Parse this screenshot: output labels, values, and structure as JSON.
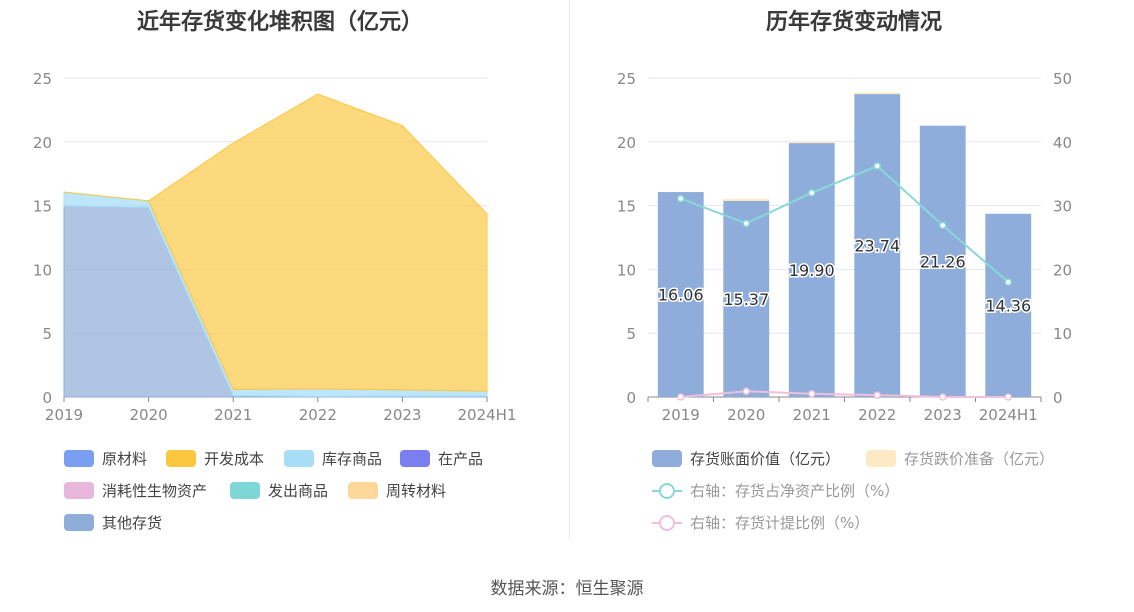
{
  "source": "数据来源：恒生聚源",
  "chart_data": [
    {
      "type": "area",
      "title": "近年存货变化堆积图（亿元）",
      "categories": [
        "2019",
        "2020",
        "2021",
        "2022",
        "2023",
        "2024H1"
      ],
      "ylim": [
        0,
        25
      ],
      "yticks": [
        0,
        5,
        10,
        15,
        20,
        25
      ],
      "grid": true,
      "legend_position": "bottom",
      "series": [
        {
          "name": "原材料",
          "color": "#7b9ff0",
          "values": [
            0,
            0,
            0,
            0,
            0,
            0
          ]
        },
        {
          "name": "开发成本",
          "color": "#fbc73f",
          "values": [
            0,
            0,
            19.3,
            23.1,
            20.7,
            13.9
          ]
        },
        {
          "name": "库存商品",
          "color": "#a8ddf8",
          "values": [
            1.1,
            0.5,
            0.5,
            0.6,
            0.5,
            0.4
          ]
        },
        {
          "name": "在产品",
          "color": "#7b7ef0",
          "values": [
            0,
            0,
            0,
            0,
            0,
            0
          ]
        },
        {
          "name": "消耗性生物资产",
          "color": "#e8b8dc",
          "values": [
            0,
            0,
            0,
            0,
            0,
            0
          ]
        },
        {
          "name": "发出商品",
          "color": "#7fd6d6",
          "values": [
            0,
            0,
            0,
            0,
            0,
            0
          ]
        },
        {
          "name": "周转材料",
          "color": "#fdd89a",
          "values": [
            0,
            0,
            0,
            0,
            0,
            0
          ]
        },
        {
          "name": "其他存货",
          "color": "#8fadd9",
          "values": [
            14.96,
            14.87,
            0.1,
            0.04,
            0.06,
            0.06
          ]
        }
      ]
    },
    {
      "type": "bar",
      "title": "历年存货变动情况",
      "categories": [
        "2019",
        "2020",
        "2021",
        "2022",
        "2023",
        "2024H1"
      ],
      "ylim": [
        0,
        25
      ],
      "yticks": [
        0,
        5,
        10,
        15,
        20,
        25
      ],
      "y2lim": [
        0,
        50
      ],
      "y2ticks": [
        0,
        10,
        20,
        30,
        40,
        50
      ],
      "grid": true,
      "legend_position": "bottom",
      "series": [
        {
          "name": "存货账面价值（亿元）",
          "kind": "bar",
          "color": "#8eadda",
          "values": [
            16.06,
            15.37,
            19.9,
            23.74,
            21.26,
            14.36
          ],
          "labels": [
            "16.06",
            "15.37",
            "19.90",
            "23.74",
            "21.26",
            "14.36"
          ]
        },
        {
          "name": "存货跌价准备（亿元）",
          "kind": "bar-stack",
          "color": "#fde9c3",
          "values": [
            0,
            0.15,
            0.12,
            0.12,
            0,
            0
          ]
        },
        {
          "name": "右轴：存货占净资产比例（%）",
          "kind": "line",
          "axis": "right",
          "color": "#88d8d8",
          "values": [
            31.1,
            27.2,
            32.0,
            36.2,
            26.9,
            18.0
          ]
        },
        {
          "name": "右轴：存货计提比例（%）",
          "kind": "line",
          "axis": "right",
          "color": "#eec0dc",
          "values": [
            0.0,
            0.9,
            0.5,
            0.3,
            0.0,
            0.0
          ]
        }
      ]
    }
  ]
}
